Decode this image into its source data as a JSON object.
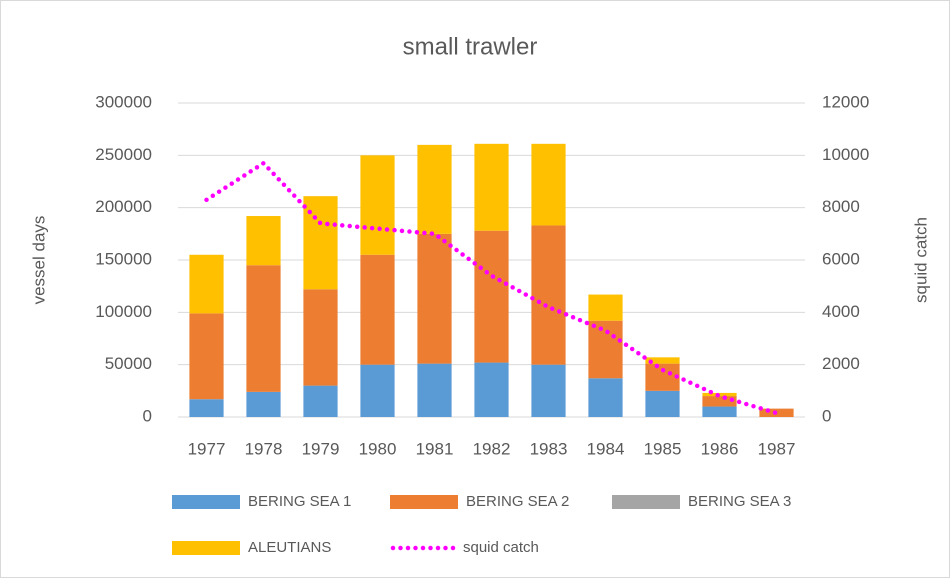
{
  "chart_data": {
    "type": "bar",
    "stacked": true,
    "title": "small trawler",
    "ylabel": "vessel days",
    "y2label": "squid catch",
    "categories": [
      "1977",
      "1978",
      "1979",
      "1980",
      "1981",
      "1982",
      "1983",
      "1984",
      "1985",
      "1986",
      "1987"
    ],
    "series": [
      {
        "name": "BERING SEA 1",
        "color": "#5b9bd5",
        "values": [
          17000,
          24000,
          30000,
          50000,
          51000,
          52000,
          50000,
          37000,
          25000,
          10000,
          0
        ]
      },
      {
        "name": "BERING SEA 2",
        "color": "#ed7d31",
        "values": [
          82000,
          121000,
          92000,
          105000,
          124000,
          126000,
          133000,
          55000,
          26000,
          10000,
          8000
        ]
      },
      {
        "name": "BERING SEA 3",
        "color": "#a5a5a5",
        "values": [
          0,
          0,
          0,
          0,
          0,
          0,
          0,
          0,
          0,
          0,
          0
        ]
      },
      {
        "name": "ALEUTIANS",
        "color": "#ffc000",
        "values": [
          56000,
          47000,
          89000,
          95000,
          85000,
          83000,
          78000,
          25000,
          6000,
          3000,
          0
        ]
      },
      {
        "name": "squid catch",
        "color": "#ff00ff",
        "type": "line",
        "axis": "y2",
        "values": [
          8300,
          9700,
          7400,
          7200,
          7000,
          5400,
          4200,
          3300,
          1800,
          800,
          150
        ]
      }
    ],
    "ylim": [
      0,
      300000
    ],
    "yticks": [
      0,
      50000,
      100000,
      150000,
      200000,
      250000,
      300000
    ],
    "y2lim": [
      0,
      12000
    ],
    "y2ticks": [
      0,
      2000,
      4000,
      6000,
      8000,
      10000,
      12000
    ],
    "grid": true,
    "legend": "bottom"
  }
}
